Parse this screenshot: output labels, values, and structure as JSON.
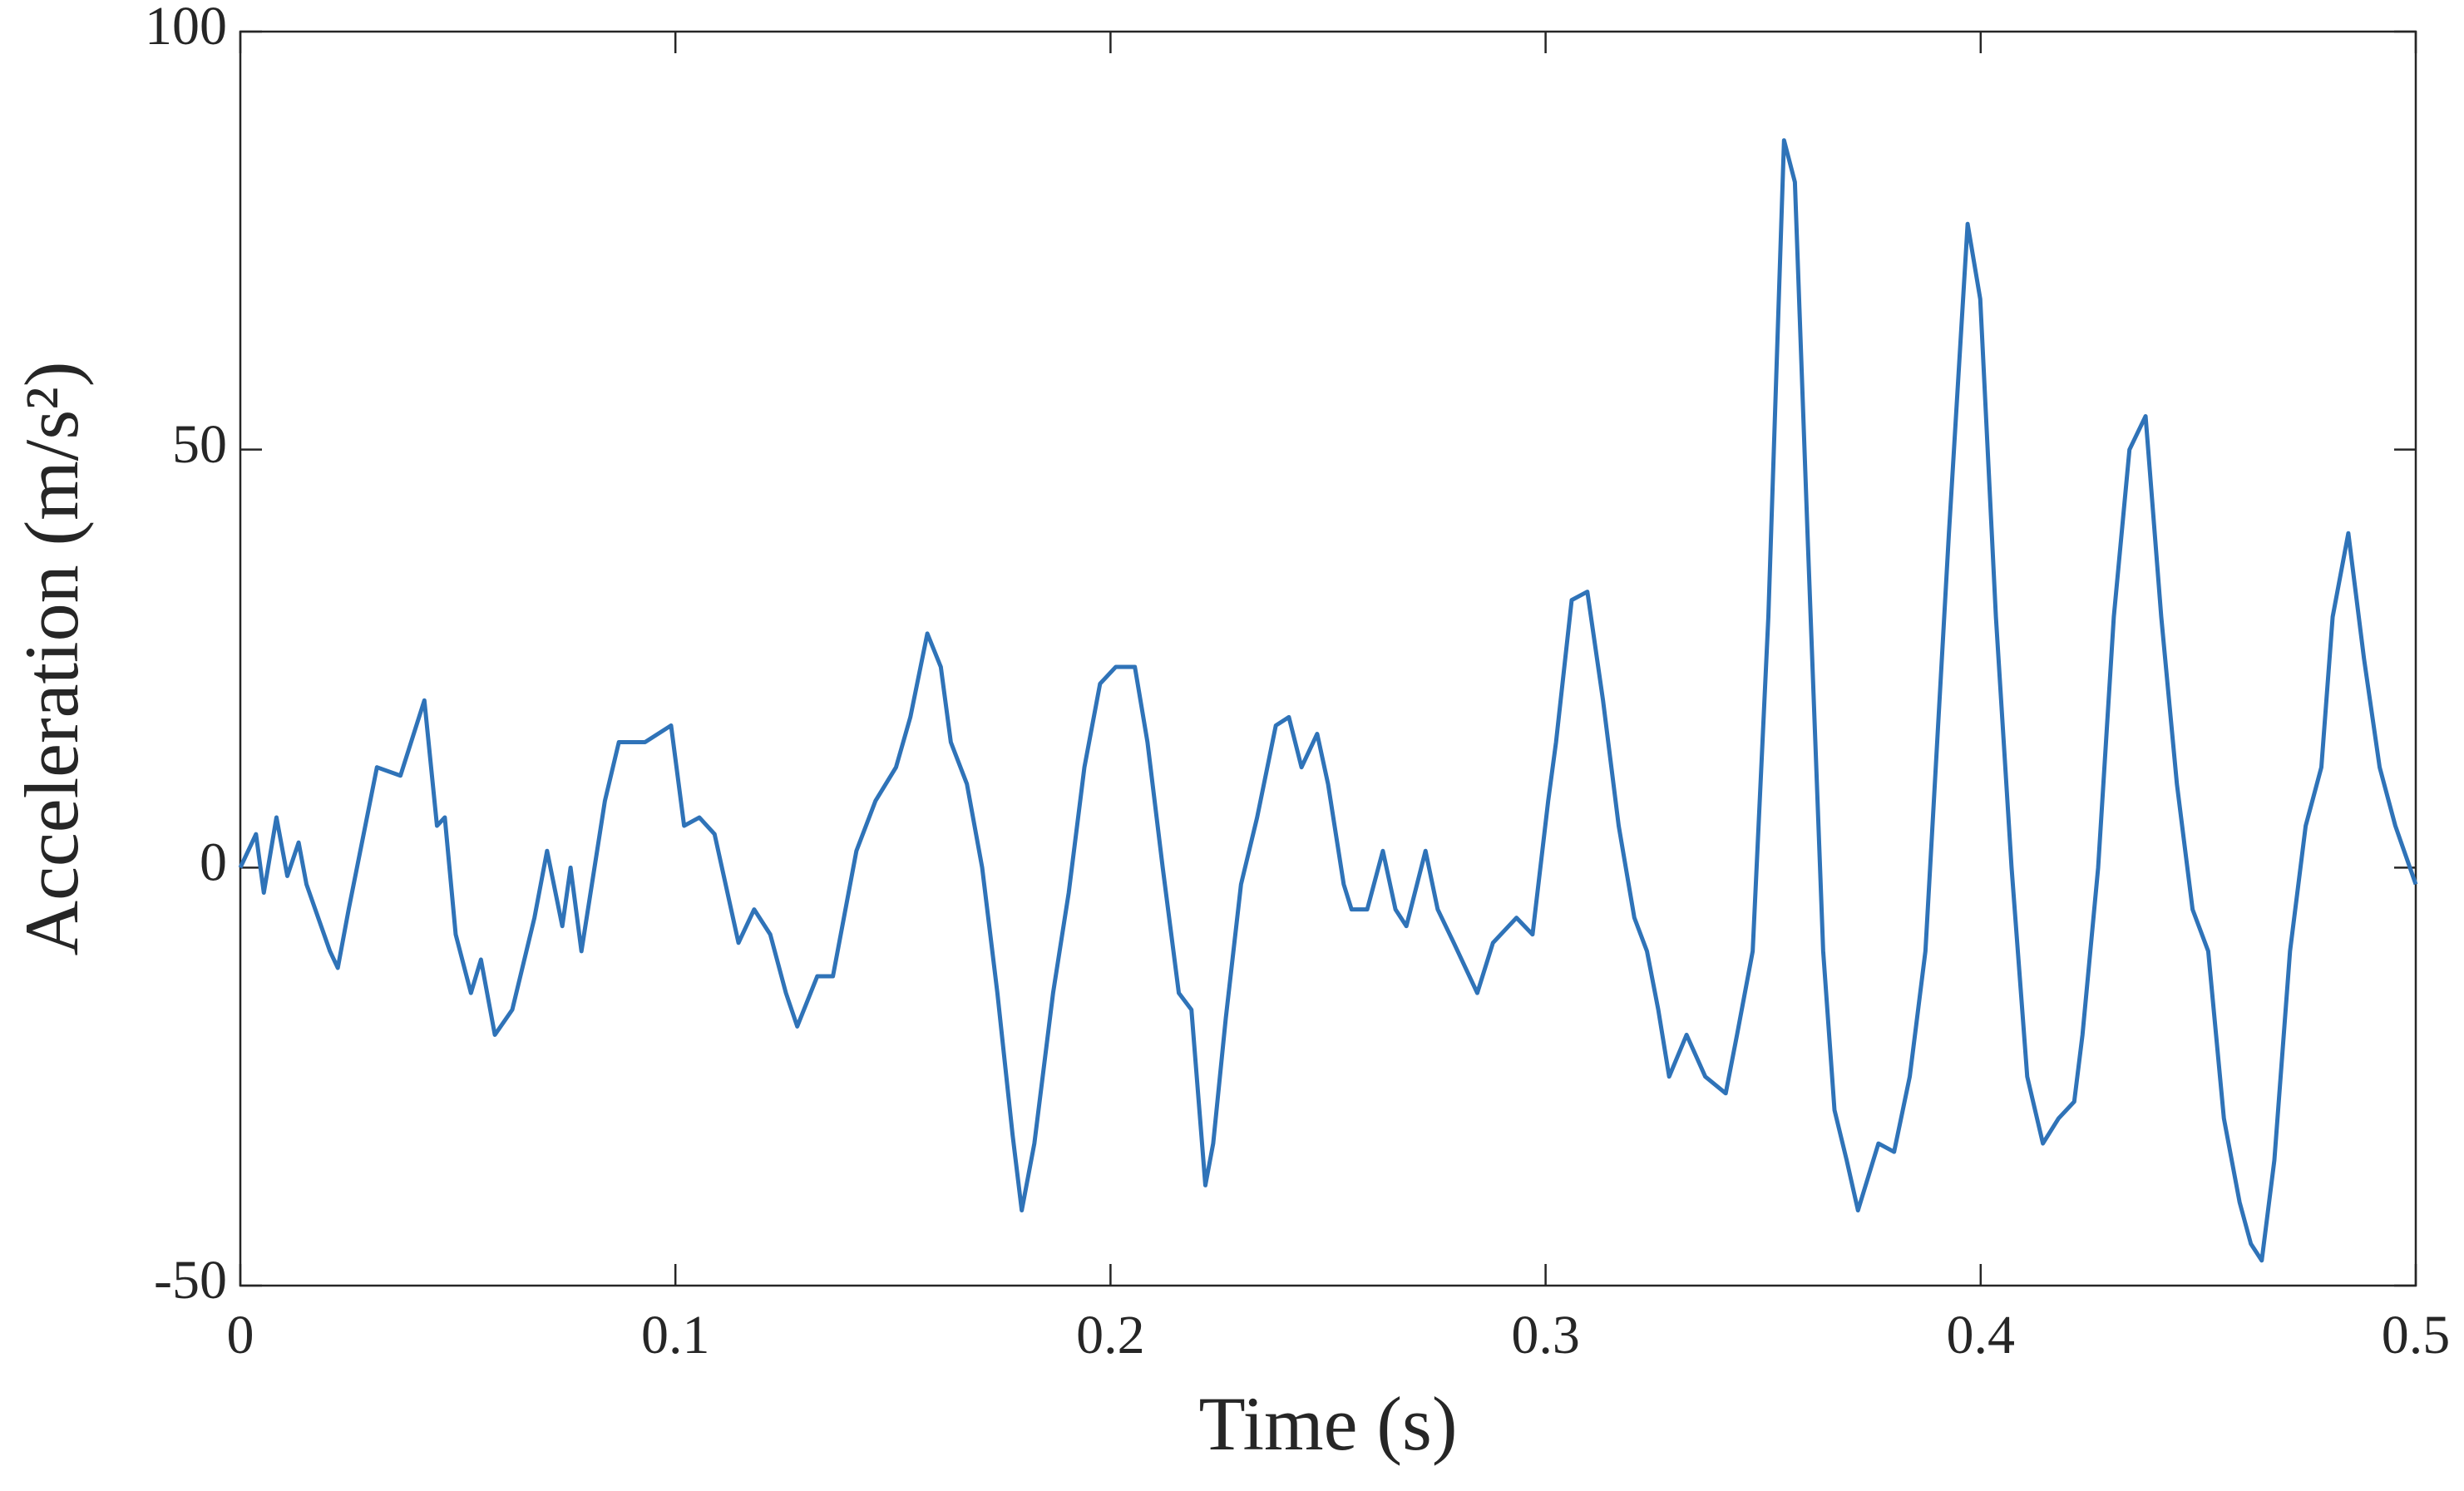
{
  "chart_data": {
    "type": "line",
    "x_label": "Time (s)",
    "y_label": "Acceleration (m/s²)",
    "x": [
      0,
      0.0036,
      0.0054,
      0.0083,
      0.0108,
      0.0134,
      0.0152,
      0.0206,
      0.0224,
      0.0249,
      0.0314,
      0.0368,
      0.0423,
      0.0452,
      0.047,
      0.0495,
      0.053,
      0.0553,
      0.0585,
      0.0625,
      0.0676,
      0.0705,
      0.074,
      0.0759,
      0.0784,
      0.0838,
      0.087,
      0.093,
      0.099,
      0.102,
      0.1055,
      0.109,
      0.1145,
      0.1181,
      0.1218,
      0.1254,
      0.128,
      0.1326,
      0.1362,
      0.1416,
      0.146,
      0.1507,
      0.154,
      0.1579,
      0.161,
      0.1633,
      0.167,
      0.1705,
      0.174,
      0.1775,
      0.1796,
      0.1825,
      0.1868,
      0.1904,
      0.194,
      0.1976,
      0.2012,
      0.2056,
      0.2085,
      0.212,
      0.2157,
      0.2186,
      0.2218,
      0.2236,
      0.2265,
      0.23,
      0.2337,
      0.238,
      0.241,
      0.2439,
      0.2475,
      0.25,
      0.2536,
      0.2554,
      0.259,
      0.2626,
      0.2655,
      0.268,
      0.2724,
      0.2752,
      0.2789,
      0.2825,
      0.2843,
      0.2879,
      0.2933,
      0.297,
      0.3006,
      0.3024,
      0.306,
      0.3096,
      0.3132,
      0.3168,
      0.3204,
      0.3233,
      0.3259,
      0.3284,
      0.3324,
      0.3367,
      0.3414,
      0.344,
      0.3476,
      0.3512,
      0.3548,
      0.3573,
      0.3602,
      0.3638,
      0.3664,
      0.3692,
      0.3718,
      0.3765,
      0.3801,
      0.3837,
      0.3873,
      0.3927,
      0.397,
      0.3999,
      0.4035,
      0.4071,
      0.4107,
      0.4143,
      0.4179,
      0.4215,
      0.4234,
      0.427,
      0.4306,
      0.4342,
      0.4379,
      0.4415,
      0.4451,
      0.4487,
      0.4523,
      0.4559,
      0.4595,
      0.4621,
      0.4646,
      0.4675,
      0.4711,
      0.4747,
      0.4783,
      0.4809,
      0.4845,
      0.4881,
      0.4917,
      0.4953,
      0.5
    ],
    "series": [
      {
        "color": "#2f73b8",
        "values": [
          0,
          4,
          -3,
          6,
          -1,
          3,
          -2,
          -10,
          -12,
          -5,
          12,
          11,
          20,
          5,
          6,
          -8,
          -15,
          -11,
          -20,
          -17,
          -6,
          2,
          -7,
          0,
          -10,
          8,
          15,
          15,
          17,
          5,
          6,
          4,
          -9,
          -5,
          -8,
          -15,
          -19,
          -13,
          -13,
          2,
          8,
          12,
          18,
          28,
          24,
          15,
          10,
          0,
          -15,
          -32,
          -41,
          -33,
          -15,
          -3,
          12,
          22,
          24,
          24,
          15,
          0,
          -15,
          -17,
          -38,
          -33,
          -18,
          -2,
          6,
          17,
          18,
          12,
          16,
          10,
          -2,
          -5,
          -5,
          2,
          -5,
          -7,
          2,
          -5,
          -9,
          -13,
          -15,
          -9,
          -6,
          -8,
          8,
          15,
          32,
          33,
          20,
          5,
          -6,
          -10,
          -17,
          -25,
          -20,
          -25,
          -27,
          -20,
          -10,
          30,
          87,
          82,
          40,
          -10,
          -29,
          -35,
          -41,
          -33,
          -34,
          -25,
          -10,
          40,
          77,
          68,
          30,
          0,
          -25,
          -33,
          -30,
          -28,
          -20,
          0,
          30,
          50,
          54,
          30,
          10,
          -5,
          -10,
          -30,
          -40,
          -45,
          -47,
          -35,
          -10,
          5,
          12,
          30,
          40,
          25,
          12,
          5,
          -2
        ]
      }
    ],
    "xlim": [
      0,
      0.5
    ],
    "xticks": [
      0,
      0.1,
      0.2,
      0.3,
      0.4,
      0.5
    ],
    "ylim": [
      -50,
      100
    ],
    "yticks": [
      -50,
      0,
      50,
      100
    ]
  }
}
